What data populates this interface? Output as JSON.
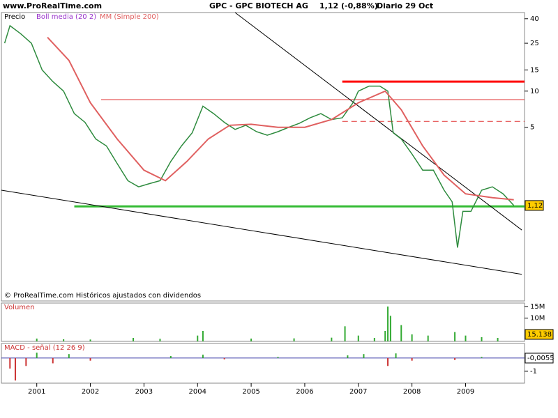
{
  "header": {
    "site": "www.ProRealTime.com",
    "title": "GPC - GPC BIOTECH AG",
    "quote": "1,12 (-0,88%)",
    "period": "Diario  29 Oct"
  },
  "chart_data": [
    {
      "type": "line",
      "legend": [
        "Precio",
        "Boll media (20 2)",
        "MM (Simple 200)"
      ],
      "footer": "© ProRealTime.com Históricos ajustados con dividendos",
      "log_scale": true,
      "xlim": [
        2000.34,
        2010.1
      ],
      "xticks": [
        2001,
        2002,
        2003,
        2004,
        2005,
        2006,
        2007,
        2008,
        2009
      ],
      "ylim": [
        0.18,
        45
      ],
      "yticks": [
        5,
        10,
        15,
        25,
        40
      ],
      "last_label": "1,12",
      "series": [
        {
          "name": "Precio",
          "color": "#2e8b3e",
          "x": [
            2000.4,
            2000.5,
            2000.7,
            2000.9,
            2001.1,
            2001.3,
            2001.5,
            2001.7,
            2001.9,
            2002.1,
            2002.3,
            2002.5,
            2002.7,
            2002.9,
            2003.1,
            2003.3,
            2003.5,
            2003.7,
            2003.9,
            2004.1,
            2004.3,
            2004.5,
            2004.7,
            2004.9,
            2005.1,
            2005.3,
            2005.5,
            2005.7,
            2005.9,
            2006.1,
            2006.3,
            2006.5,
            2006.7,
            2006.9,
            2007.0,
            2007.2,
            2007.4,
            2007.55,
            2007.65,
            2007.8,
            2008.0,
            2008.2,
            2008.4,
            2008.6,
            2008.75,
            2008.85,
            2008.95,
            2009.1,
            2009.3,
            2009.5,
            2009.7,
            2009.9
          ],
          "values": [
            25,
            35,
            30,
            25,
            15,
            12,
            10,
            6.5,
            5.5,
            4,
            3.5,
            2.5,
            1.8,
            1.6,
            1.7,
            1.8,
            2.6,
            3.5,
            4.5,
            7.5,
            6.5,
            5.5,
            4.8,
            5.2,
            4.6,
            4.3,
            4.6,
            5,
            5.4,
            6,
            6.5,
            5.8,
            6,
            8,
            10,
            11,
            11,
            10,
            4.5,
            4,
            3,
            2.2,
            2.2,
            1.5,
            1.2,
            0.5,
            1,
            1,
            1.5,
            1.6,
            1.4,
            1.12
          ]
        },
        {
          "name": "MM (Simple 200)",
          "color": "#e06060",
          "x": [
            2001.2,
            2001.6,
            2002.0,
            2002.5,
            2003.0,
            2003.4,
            2003.8,
            2004.2,
            2004.6,
            2005.0,
            2005.5,
            2006.0,
            2006.5,
            2007.0,
            2007.5,
            2007.8,
            2008.2,
            2008.6,
            2009.0,
            2009.5,
            2009.9
          ],
          "values": [
            28,
            18,
            8,
            4,
            2.2,
            1.8,
            2.6,
            4,
            5.2,
            5.3,
            5,
            5,
            5.8,
            8,
            10,
            7,
            3.5,
            2,
            1.4,
            1.3,
            1.25
          ]
        }
      ],
      "levels": [
        {
          "value": 12,
          "from": 2006.7,
          "color": "#ff0000",
          "width": 3
        },
        {
          "value": 8.5,
          "from": 2002.2,
          "color": "#e03030",
          "width": 1
        },
        {
          "value": 5.6,
          "from": 2006.7,
          "color": "#e03030",
          "width": 1,
          "dashed": true
        },
        {
          "value": 1.1,
          "from": 2001.7,
          "color": "#33bb33",
          "width": 3
        }
      ],
      "trendlines": [
        {
          "x": [
            2004.7,
            2010.05
          ],
          "y": [
            45,
            0.7
          ]
        },
        {
          "x": [
            2000.34,
            2010.05
          ],
          "y": [
            1.5,
            0.3
          ]
        }
      ]
    },
    {
      "type": "bar",
      "label": "Volumen",
      "color": "#33aa33",
      "last_label": "15.138",
      "ylim": [
        0,
        16500000
      ],
      "yticks": [
        {
          "value": 10000000,
          "label": "10M"
        },
        {
          "value": 15000000,
          "label": "15M"
        }
      ],
      "x": [
        2001.0,
        2001.5,
        2002.0,
        2002.8,
        2003.3,
        2004.0,
        2004.1,
        2005.0,
        2005.8,
        2006.5,
        2006.75,
        2007.0,
        2007.3,
        2007.5,
        2007.55,
        2007.6,
        2007.8,
        2008.0,
        2008.3,
        2008.8,
        2009.0,
        2009.3,
        2009.6
      ],
      "values": [
        1200000,
        900000,
        800000,
        1500000,
        1100000,
        2500000,
        4500000,
        1200000,
        1300000,
        1600000,
        6500000,
        2500000,
        1500000,
        4500000,
        15000000,
        11000000,
        7000000,
        3000000,
        2500000,
        4000000,
        2500000,
        1800000,
        1500000
      ]
    },
    {
      "type": "bar",
      "label": "MACD - señal (12 26 9)",
      "color": "#33aa33",
      "neg_color": "#cc3333",
      "last_label": "-0,0055",
      "ylim": [
        -1.9,
        1.1
      ],
      "yticks": [
        -1
      ],
      "x": [
        2000.5,
        2000.6,
        2000.8,
        2001.0,
        2001.3,
        2001.6,
        2002.0,
        2003.5,
        2004.1,
        2004.5,
        2005.5,
        2006.8,
        2007.1,
        2007.55,
        2007.7,
        2008.0,
        2008.8,
        2009.3
      ],
      "values": [
        -0.8,
        -1.7,
        -0.6,
        0.4,
        -0.4,
        0.3,
        -0.2,
        0.15,
        0.25,
        -0.1,
        0.08,
        0.2,
        0.3,
        -0.6,
        0.35,
        -0.2,
        -0.15,
        0.08
      ]
    }
  ]
}
